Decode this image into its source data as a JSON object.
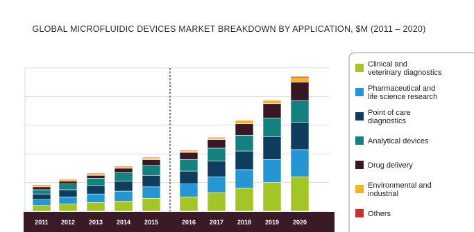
{
  "chart_data": {
    "type": "bar",
    "stacked": true,
    "title": "GLOBAL MICROFLUIDIC DEVICES MARKET BREAKDOWN BY APPLICATION, $M (2011 – 2020)",
    "xlabel": "",
    "ylabel": "",
    "ylim": [
      0,
      100
    ],
    "grid": true,
    "legend_position": "right",
    "period_divider_between": [
      "2015",
      "2016"
    ],
    "categories": [
      "2011",
      "2012",
      "2013",
      "2014",
      "2015",
      "2016",
      "2017",
      "2018",
      "2019",
      "2020"
    ],
    "series": [
      {
        "name": "Clinical and veterinary diagnostics",
        "color": "#a3c527",
        "values": [
          4,
          5,
          6,
          7,
          9,
          10,
          13,
          16,
          20,
          24
        ]
      },
      {
        "name": "Pharmaceutical and life science research",
        "color": "#2595d4",
        "values": [
          4,
          5,
          6,
          7,
          8,
          9,
          11,
          13,
          16,
          19
        ]
      },
      {
        "name": "Point of care diagnostics",
        "color": "#0f3d5e",
        "values": [
          4,
          5,
          6,
          7,
          8,
          9,
          11,
          13,
          16,
          19
        ]
      },
      {
        "name": "Analytical devices",
        "color": "#14817e",
        "values": [
          3,
          4,
          5,
          6,
          7,
          8,
          9,
          11,
          13,
          15
        ]
      },
      {
        "name": "Drug delivery",
        "color": "#3a1725",
        "values": [
          2,
          2,
          2,
          3,
          4,
          5,
          6,
          8,
          10,
          13
        ]
      },
      {
        "name": "Environmental and industrial",
        "color": "#f4b41a",
        "values": [
          1,
          1,
          1,
          1,
          1,
          1,
          1,
          2,
          2,
          3
        ]
      },
      {
        "name": "Others",
        "color": "#cc2e2e",
        "values": [
          0.5,
          0.5,
          0.5,
          0.5,
          0.5,
          0.5,
          0.5,
          0.5,
          0.5,
          1
        ]
      }
    ]
  },
  "colors": {
    "axis_band": "#3a1a26",
    "grid": "#d9d9d9"
  }
}
